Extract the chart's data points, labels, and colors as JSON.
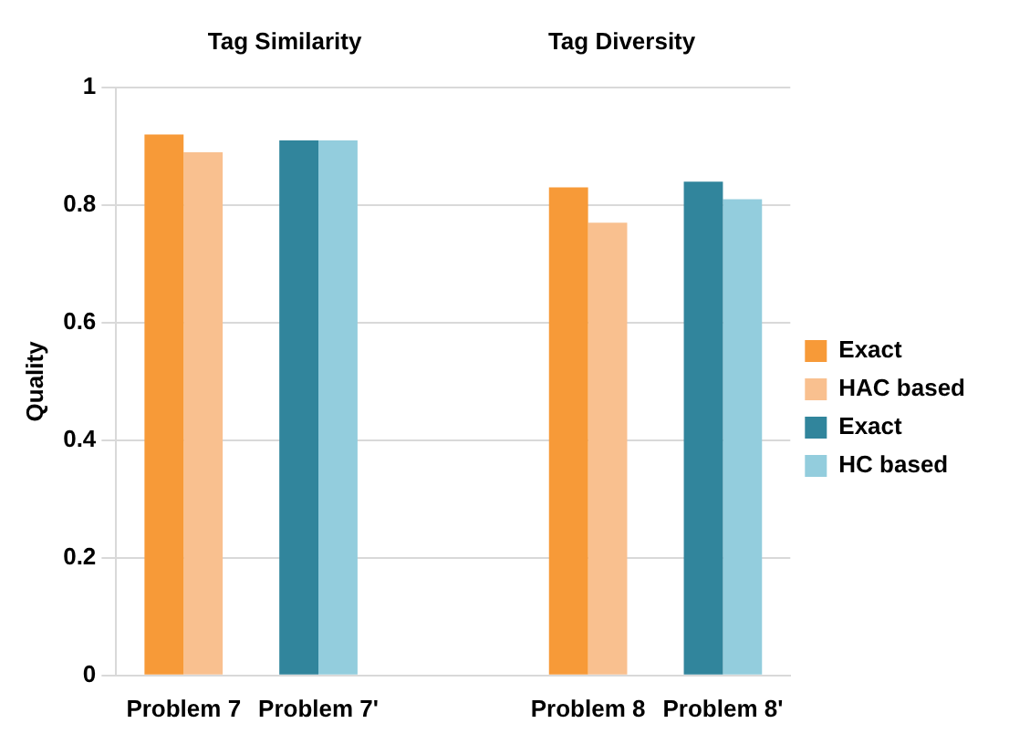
{
  "chart_data": {
    "type": "bar",
    "ylabel": "Quality",
    "categories": [
      "Problem 7",
      "Problem 7'",
      null,
      "Problem 8",
      "Problem 8'"
    ],
    "series": [
      {
        "name": "Exact",
        "color": "#f79a38",
        "values": [
          0.92,
          null,
          null,
          0.83,
          null
        ]
      },
      {
        "name": "HAC based",
        "color": "#f9c08f",
        "values": [
          0.89,
          null,
          null,
          0.77,
          null
        ]
      },
      {
        "name": "Exact",
        "color": "#31859c",
        "values": [
          null,
          0.91,
          null,
          null,
          0.84
        ]
      },
      {
        "name": "HC based",
        "color": "#93cddd",
        "values": [
          null,
          0.91,
          null,
          null,
          0.81
        ]
      }
    ],
    "ylim": [
      0,
      1
    ],
    "yticks": [
      0,
      0.2,
      0.4,
      0.6,
      0.8,
      1
    ],
    "grid": "y",
    "legend": "right",
    "annotations": [
      "Tag Similarity",
      "Tag Diversity"
    ]
  }
}
